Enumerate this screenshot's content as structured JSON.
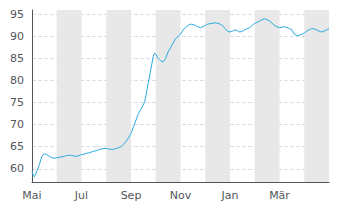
{
  "chart_data": {
    "type": "line",
    "x": [
      0.0,
      0.05,
      0.1,
      0.15,
      0.2,
      0.25,
      0.3,
      0.35,
      0.4,
      0.45,
      0.5,
      0.6,
      0.7,
      0.8,
      0.9,
      1.0,
      1.1,
      1.2,
      1.3,
      1.4,
      1.5,
      1.6,
      1.7,
      1.8,
      1.9,
      2.0,
      2.1,
      2.2,
      2.3,
      2.4,
      2.5,
      2.6,
      2.7,
      2.8,
      2.9,
      3.0,
      3.1,
      3.2,
      3.3,
      3.4,
      3.5,
      3.6,
      3.7,
      3.8,
      3.9,
      4.0,
      4.1,
      4.2,
      4.3,
      4.4,
      4.5,
      4.55,
      4.6,
      4.65,
      4.7,
      4.75,
      4.8,
      4.85,
      4.9,
      4.95,
      5.0,
      5.05,
      5.1,
      5.15,
      5.2,
      5.25,
      5.3,
      5.35,
      5.4,
      5.45,
      5.5,
      5.6,
      5.7,
      5.8,
      5.9,
      6.0,
      6.1,
      6.2,
      6.3,
      6.4,
      6.5,
      6.6,
      6.7,
      6.8,
      6.9,
      7.0,
      7.1,
      7.2,
      7.3,
      7.4,
      7.5,
      7.6,
      7.7,
      7.8,
      7.9,
      8.0,
      8.1,
      8.2,
      8.3,
      8.4,
      8.5,
      8.6,
      8.7,
      8.8,
      8.9,
      9.0,
      9.1,
      9.2,
      9.3,
      9.4,
      9.5,
      9.6,
      9.7,
      9.8,
      9.9,
      10.0,
      10.1,
      10.2,
      10.3,
      10.4,
      10.5,
      10.6,
      10.7,
      10.8,
      10.9,
      11.0,
      11.1,
      11.2,
      11.3,
      11.4,
      11.5,
      11.6,
      11.7,
      11.8,
      11.9,
      12.0
    ],
    "values": [
      59.5,
      58.5,
      58.2,
      58.8,
      59.5,
      60.2,
      61.0,
      62.0,
      62.8,
      63.2,
      63.4,
      63.2,
      62.8,
      62.5,
      62.4,
      62.5,
      62.6,
      62.7,
      62.8,
      63.0,
      63.1,
      63.0,
      62.9,
      62.8,
      63.0,
      63.2,
      63.3,
      63.5,
      63.6,
      63.8,
      64.0,
      64.1,
      64.3,
      64.5,
      64.6,
      64.6,
      64.5,
      64.4,
      64.4,
      64.6,
      64.8,
      65.0,
      65.5,
      66.2,
      67.0,
      68.0,
      69.5,
      71.0,
      72.5,
      73.5,
      74.5,
      75.2,
      76.5,
      78.0,
      79.5,
      81.0,
      82.5,
      84.0,
      85.5,
      86.2,
      86.0,
      85.5,
      85.0,
      84.8,
      84.5,
      84.3,
      84.3,
      84.5,
      85.0,
      85.8,
      86.5,
      87.5,
      88.5,
      89.5,
      90.0,
      90.5,
      91.5,
      92.0,
      92.5,
      92.8,
      92.7,
      92.5,
      92.2,
      92.0,
      92.2,
      92.5,
      92.8,
      92.9,
      93.0,
      93.1,
      93.0,
      92.8,
      92.5,
      91.8,
      91.2,
      91.0,
      91.2,
      91.5,
      91.3,
      91.0,
      91.2,
      91.5,
      91.8,
      92.0,
      92.5,
      93.0,
      93.2,
      93.5,
      93.8,
      94.0,
      93.8,
      93.5,
      93.0,
      92.5,
      92.2,
      92.0,
      92.1,
      92.2,
      92.0,
      91.8,
      91.5,
      90.5,
      90.2,
      90.3,
      90.5,
      90.8,
      91.2,
      91.5,
      91.8,
      91.7,
      91.5,
      91.2,
      91.0,
      91.2,
      91.5,
      91.8
    ],
    "color": "#29aae1",
    "xlim": [
      0,
      12
    ],
    "xticks": [
      {
        "value": 0,
        "label": "Mai"
      },
      {
        "value": 2,
        "label": "Jul"
      },
      {
        "value": 4,
        "label": "Sep"
      },
      {
        "value": 6,
        "label": "Nov"
      },
      {
        "value": 8,
        "label": "Jan"
      },
      {
        "value": 10,
        "label": "Mär"
      }
    ],
    "ylim": [
      57,
      96
    ],
    "yticks": [
      60,
      65,
      70,
      75,
      80,
      85,
      90,
      95
    ],
    "grid": true,
    "shaded_bands": [
      [
        1,
        2
      ],
      [
        3,
        4
      ],
      [
        5,
        6
      ],
      [
        7,
        8
      ],
      [
        9,
        10
      ],
      [
        11,
        12
      ]
    ],
    "band_color": "#e8e8e8"
  }
}
